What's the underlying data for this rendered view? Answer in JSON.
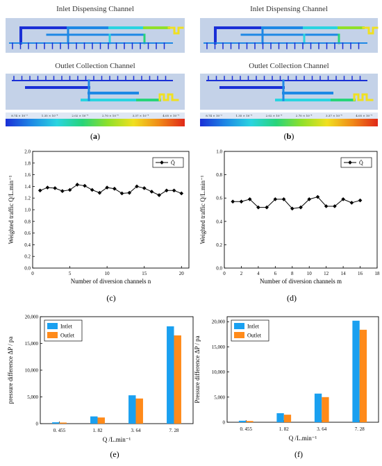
{
  "simulation_panels": [
    {
      "inlet_title": "Inlet Dispensing Channel",
      "outlet_title": "Outlet Collection Channel",
      "colorbar_ticks": [
        "8.74 × 10⁻⁵",
        "1.35 × 10⁻⁴",
        "2.02 × 10⁻⁴",
        "2.70 × 10⁻⁴",
        "3.37 × 10⁻⁴",
        "4.05 × 10⁻⁴"
      ],
      "caption": "(a)",
      "caption_letter": "a"
    },
    {
      "inlet_title": "Inlet Dispensing Channel",
      "outlet_title": "Outlet Collection Channel",
      "colorbar_ticks": [
        "8.74 × 10⁻⁵",
        "1.35 × 10⁻⁴",
        "2.02 × 10⁻⁴",
        "2.70 × 10⁻⁴",
        "3.37 × 10⁻⁴",
        "4.05 × 10⁻⁴"
      ],
      "caption": "(b)",
      "caption_letter": "b"
    }
  ],
  "colormap": [
    "#1a2fd6",
    "#1e88e5",
    "#2ad4e0",
    "#28d47a",
    "#8fe02a",
    "#f0e020",
    "#f08a18",
    "#e02818"
  ],
  "chart_data": [
    {
      "type": "line",
      "caption": "(c)",
      "xlabel": "Number of diversion channels n",
      "ylabel": "Weighted traffic  Q/L.min⁻¹",
      "legend": "Q̄",
      "legend_position": "top-right",
      "xlim": [
        0,
        21
      ],
      "ylim": [
        0,
        2.0
      ],
      "xticks": [
        0,
        5,
        10,
        15,
        20
      ],
      "yticks": [
        "0.0",
        "0.2",
        "0.4",
        "0.6",
        "0.8",
        "1.0",
        "1.2",
        "1.4",
        "1.6",
        "1.8",
        "2.0"
      ],
      "x": [
        1,
        2,
        3,
        4,
        5,
        6,
        7,
        8,
        9,
        10,
        11,
        12,
        13,
        14,
        15,
        16,
        17,
        18,
        19,
        20
      ],
      "values": [
        1.33,
        1.38,
        1.37,
        1.32,
        1.34,
        1.43,
        1.41,
        1.34,
        1.29,
        1.38,
        1.36,
        1.28,
        1.29,
        1.4,
        1.37,
        1.31,
        1.25,
        1.33,
        1.33,
        1.28
      ],
      "color": "#000000"
    },
    {
      "type": "line",
      "caption": "(d)",
      "xlabel": "Number of diversion channels m",
      "ylabel": "Weighted traffic Q/L.min⁻¹",
      "legend": "Q̄",
      "legend_position": "top-right",
      "xlim": [
        0,
        18
      ],
      "ylim": [
        0,
        1.0
      ],
      "xticks": [
        0,
        2,
        4,
        6,
        8,
        10,
        12,
        14,
        16,
        18
      ],
      "yticks": [
        "0.0",
        "0.2",
        "0.4",
        "0.6",
        "0.8",
        "1.0"
      ],
      "x": [
        1,
        2,
        3,
        4,
        5,
        6,
        7,
        8,
        9,
        10,
        11,
        12,
        13,
        14,
        15,
        16
      ],
      "values": [
        0.57,
        0.57,
        0.59,
        0.52,
        0.52,
        0.59,
        0.59,
        0.51,
        0.52,
        0.59,
        0.61,
        0.53,
        0.53,
        0.59,
        0.56,
        0.58
      ],
      "color": "#000000"
    },
    {
      "type": "bar",
      "caption": "(e)",
      "xlabel": "Q /L.min⁻¹",
      "ylabel": "pressure difference ΔP / pa",
      "categories": [
        "0. 455",
        "1. 82",
        "3. 64",
        "7. 28"
      ],
      "ylim": [
        0,
        20000
      ],
      "yticks": [
        "0",
        "5,000",
        "10,000",
        "15,000",
        "20,000"
      ],
      "legend_position": "top-left",
      "series": [
        {
          "name": "Intlet",
          "values": [
            250,
            1350,
            5300,
            18200
          ],
          "color": "#1aa0f0"
        },
        {
          "name": "Outlet",
          "values": [
            200,
            1150,
            4700,
            16500
          ],
          "color": "#ff8a1a"
        }
      ]
    },
    {
      "type": "bar",
      "caption": "(f)",
      "xlabel": "Q /L.min⁻¹",
      "ylabel": "Pressure difference ΔP / pa",
      "categories": [
        "0. 455",
        "1. 82",
        "3. 64",
        "7. 28"
      ],
      "ylim": [
        0,
        21000
      ],
      "yticks": [
        "0",
        "5,000",
        "10,000",
        "15,000",
        "20,000"
      ],
      "legend_position": "top-left",
      "series": [
        {
          "name": "Intlet",
          "values": [
            300,
            1800,
            5700,
            20200
          ],
          "color": "#1aa0f0"
        },
        {
          "name": "Outlet",
          "values": [
            250,
            1500,
            5000,
            18400
          ],
          "color": "#ff8a1a"
        }
      ]
    }
  ]
}
